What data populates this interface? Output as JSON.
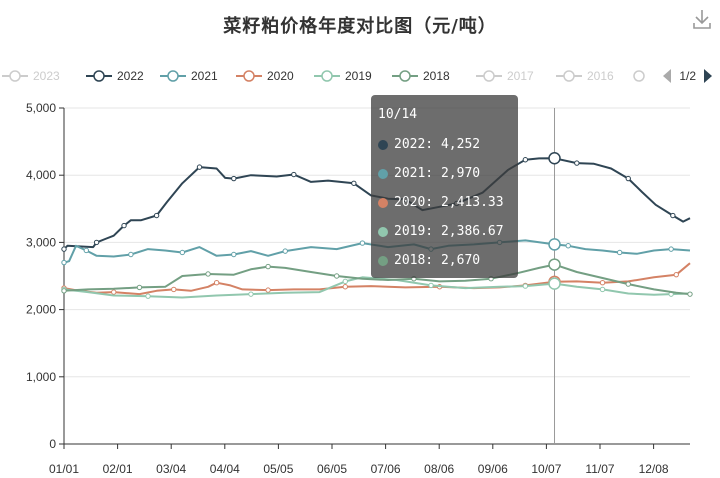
{
  "chart_data": {
    "type": "line",
    "title": "菜籽粕价格年度对比图（元/吨）",
    "xlabel": "",
    "ylabel": "",
    "ylim": [
      0,
      5000
    ],
    "yticks": [
      "0",
      "1,000",
      "2,000",
      "3,000",
      "4,000",
      "5,000"
    ],
    "xticks": [
      "01/01",
      "02/01",
      "03/04",
      "04/04",
      "05/05",
      "06/05",
      "07/06",
      "08/06",
      "09/06",
      "10/07",
      "11/07",
      "12/08"
    ],
    "grid": true,
    "legend_position": "top",
    "legend_page": "1/2",
    "legend": [
      {
        "name": "2023",
        "color": "#cccccc",
        "active": false
      },
      {
        "name": "2022",
        "color": "#2f4554",
        "active": true
      },
      {
        "name": "2021",
        "color": "#61a0a8",
        "active": true
      },
      {
        "name": "2020",
        "color": "#d48265",
        "active": true
      },
      {
        "name": "2019",
        "color": "#91c7ae",
        "active": true
      },
      {
        "name": "2018",
        "color": "#749f83",
        "active": true
      },
      {
        "name": "2017",
        "color": "#cccccc",
        "active": false
      },
      {
        "name": "2016",
        "color": "#cccccc",
        "active": false
      }
    ],
    "series": [
      {
        "name": "2022",
        "color": "#2f4554",
        "points": [
          [
            1,
            2900
          ],
          [
            3,
            2950
          ],
          [
            18,
            2930
          ],
          [
            20,
            3000
          ],
          [
            25,
            3050
          ],
          [
            30,
            3100
          ],
          [
            36,
            3250
          ],
          [
            40,
            3330
          ],
          [
            46,
            3330
          ],
          [
            55,
            3400
          ],
          [
            61,
            3600
          ],
          [
            70,
            3880
          ],
          [
            80,
            4120
          ],
          [
            90,
            4100
          ],
          [
            95,
            3960
          ],
          [
            100,
            3950
          ],
          [
            110,
            4000
          ],
          [
            125,
            3980
          ],
          [
            135,
            4010
          ],
          [
            145,
            3900
          ],
          [
            155,
            3920
          ],
          [
            170,
            3880
          ],
          [
            180,
            3700
          ],
          [
            190,
            3650
          ],
          [
            200,
            3640
          ],
          [
            210,
            3480
          ],
          [
            220,
            3530
          ],
          [
            230,
            3580
          ],
          [
            245,
            3740
          ],
          [
            260,
            4080
          ],
          [
            270,
            4230
          ],
          [
            278,
            4250
          ],
          [
            287,
            4252
          ],
          [
            300,
            4180
          ],
          [
            310,
            4170
          ],
          [
            320,
            4100
          ],
          [
            330,
            3950
          ],
          [
            338,
            3750
          ],
          [
            346,
            3560
          ],
          [
            356,
            3400
          ],
          [
            362,
            3310
          ],
          [
            366,
            3360
          ]
        ]
      },
      {
        "name": "2021",
        "color": "#61a0a8",
        "points": [
          [
            1,
            2700
          ],
          [
            4,
            2720
          ],
          [
            8,
            2950
          ],
          [
            14,
            2880
          ],
          [
            20,
            2800
          ],
          [
            30,
            2790
          ],
          [
            40,
            2820
          ],
          [
            50,
            2900
          ],
          [
            60,
            2880
          ],
          [
            70,
            2850
          ],
          [
            80,
            2930
          ],
          [
            90,
            2800
          ],
          [
            100,
            2820
          ],
          [
            110,
            2870
          ],
          [
            120,
            2800
          ],
          [
            130,
            2870
          ],
          [
            145,
            2930
          ],
          [
            160,
            2900
          ],
          [
            175,
            2990
          ],
          [
            190,
            2930
          ],
          [
            205,
            2970
          ],
          [
            215,
            2900
          ],
          [
            225,
            2950
          ],
          [
            240,
            2970
          ],
          [
            255,
            3000
          ],
          [
            270,
            3030
          ],
          [
            287,
            2970
          ],
          [
            295,
            2950
          ],
          [
            305,
            2900
          ],
          [
            315,
            2880
          ],
          [
            325,
            2850
          ],
          [
            335,
            2830
          ],
          [
            345,
            2880
          ],
          [
            355,
            2900
          ],
          [
            366,
            2880
          ]
        ]
      },
      {
        "name": "2020",
        "color": "#d48265",
        "points": [
          [
            1,
            2320
          ],
          [
            10,
            2280
          ],
          [
            20,
            2250
          ],
          [
            30,
            2260
          ],
          [
            45,
            2230
          ],
          [
            55,
            2280
          ],
          [
            65,
            2300
          ],
          [
            75,
            2280
          ],
          [
            85,
            2340
          ],
          [
            90,
            2400
          ],
          [
            98,
            2360
          ],
          [
            105,
            2300
          ],
          [
            120,
            2290
          ],
          [
            135,
            2300
          ],
          [
            150,
            2300
          ],
          [
            165,
            2340
          ],
          [
            180,
            2350
          ],
          [
            200,
            2330
          ],
          [
            220,
            2340
          ],
          [
            240,
            2320
          ],
          [
            255,
            2330
          ],
          [
            270,
            2360
          ],
          [
            287,
            2413
          ],
          [
            300,
            2420
          ],
          [
            315,
            2400
          ],
          [
            330,
            2420
          ],
          [
            345,
            2480
          ],
          [
            358,
            2520
          ],
          [
            366,
            2690
          ]
        ]
      },
      {
        "name": "2019",
        "color": "#91c7ae",
        "points": [
          [
            1,
            2300
          ],
          [
            15,
            2260
          ],
          [
            30,
            2210
          ],
          [
            50,
            2200
          ],
          [
            70,
            2180
          ],
          [
            90,
            2210
          ],
          [
            110,
            2230
          ],
          [
            130,
            2250
          ],
          [
            150,
            2260
          ],
          [
            165,
            2420
          ],
          [
            175,
            2480
          ],
          [
            195,
            2440
          ],
          [
            215,
            2360
          ],
          [
            235,
            2320
          ],
          [
            255,
            2340
          ],
          [
            270,
            2350
          ],
          [
            287,
            2387
          ],
          [
            300,
            2340
          ],
          [
            315,
            2300
          ],
          [
            330,
            2240
          ],
          [
            345,
            2220
          ],
          [
            355,
            2230
          ],
          [
            366,
            2240
          ]
        ]
      },
      {
        "name": "2018",
        "color": "#749f83",
        "points": [
          [
            1,
            2280
          ],
          [
            15,
            2300
          ],
          [
            30,
            2310
          ],
          [
            45,
            2330
          ],
          [
            60,
            2340
          ],
          [
            70,
            2500
          ],
          [
            85,
            2530
          ],
          [
            100,
            2520
          ],
          [
            110,
            2600
          ],
          [
            120,
            2640
          ],
          [
            130,
            2620
          ],
          [
            145,
            2560
          ],
          [
            160,
            2500
          ],
          [
            175,
            2460
          ],
          [
            190,
            2440
          ],
          [
            205,
            2460
          ],
          [
            220,
            2420
          ],
          [
            235,
            2430
          ],
          [
            250,
            2460
          ],
          [
            265,
            2540
          ],
          [
            278,
            2620
          ],
          [
            287,
            2670
          ],
          [
            300,
            2560
          ],
          [
            315,
            2470
          ],
          [
            330,
            2380
          ],
          [
            345,
            2300
          ],
          [
            358,
            2250
          ],
          [
            366,
            2230
          ]
        ]
      }
    ],
    "tooltip": {
      "date": "10/14",
      "day_index": 287,
      "rows": [
        {
          "label": "2022: 4,252",
          "color": "#2f4554",
          "value": 4252
        },
        {
          "label": "2021: 2,970",
          "color": "#61a0a8",
          "value": 2970
        },
        {
          "label": "2020: 2,413.33",
          "color": "#d48265",
          "value": 2413.33
        },
        {
          "label": "2019: 2,386.67",
          "color": "#91c7ae",
          "value": 2386.67
        },
        {
          "label": "2018: 2,670",
          "color": "#749f83",
          "value": 2670
        }
      ]
    }
  }
}
